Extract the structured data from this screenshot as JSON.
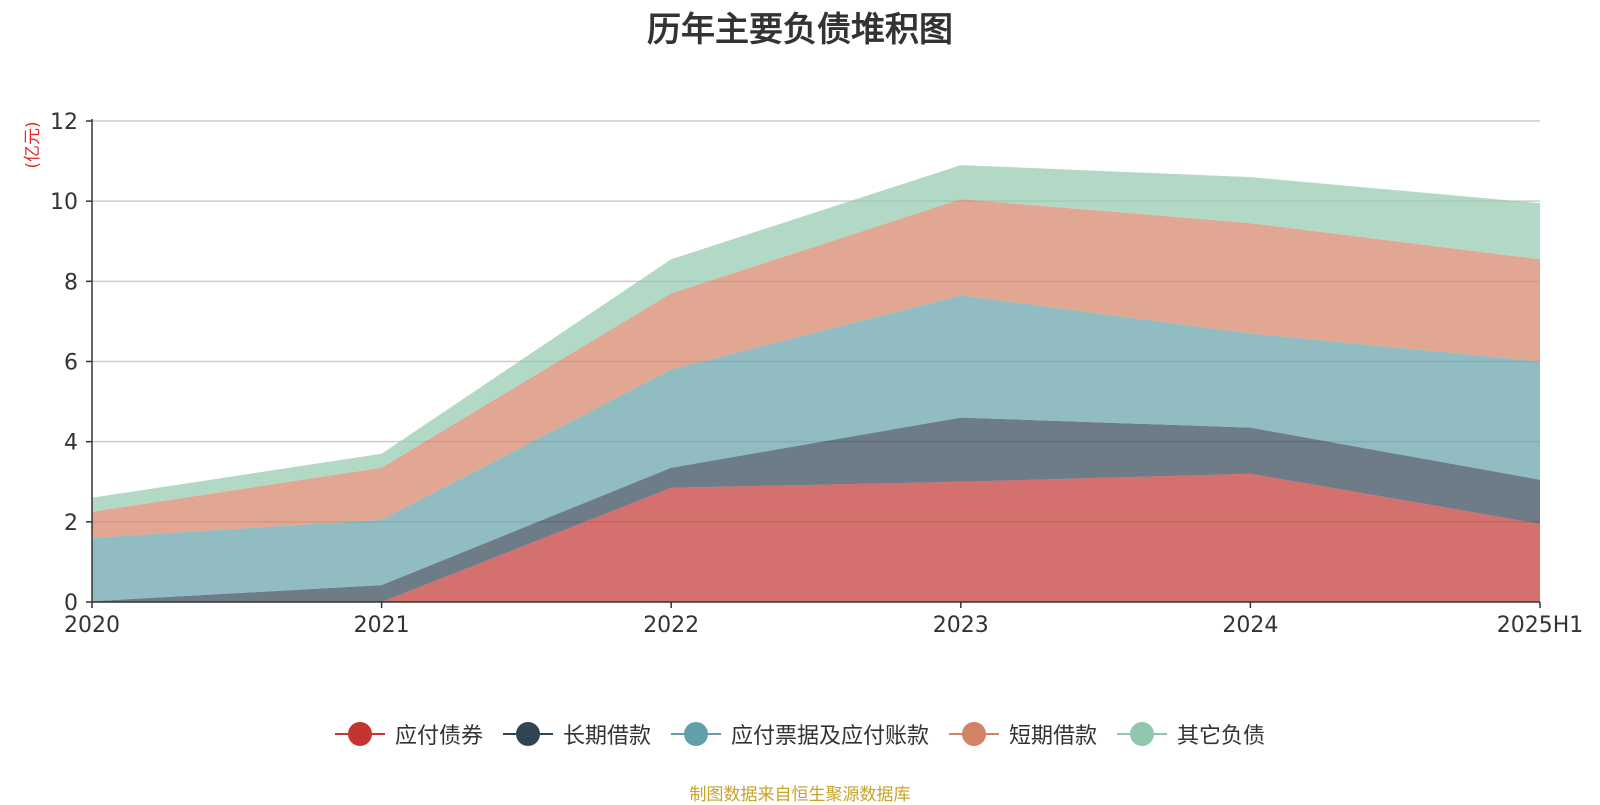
{
  "chart_data": {
    "type": "area",
    "stacked": true,
    "title": "历年主要负债堆积图",
    "y_unit": "(亿元)",
    "categories": [
      "2020",
      "2021",
      "2022",
      "2023",
      "2024",
      "2025H1"
    ],
    "ylim": [
      0,
      12
    ],
    "yticks": [
      0,
      2,
      4,
      6,
      8,
      10,
      12
    ],
    "grid": true,
    "legend_position": "bottom",
    "series": [
      {
        "name": "应付债券",
        "color": "#c23531",
        "values": [
          0.0,
          0.0,
          2.85,
          3.0,
          3.2,
          1.95
        ]
      },
      {
        "name": "长期借款",
        "color": "#2f4554",
        "values": [
          0.02,
          0.42,
          0.5,
          1.6,
          1.15,
          1.1
        ]
      },
      {
        "name": "应付票据及应付账款",
        "color": "#61a0a8",
        "values": [
          1.58,
          1.63,
          2.45,
          3.05,
          2.35,
          2.95
        ]
      },
      {
        "name": "短期借款",
        "color": "#d48265",
        "values": [
          0.65,
          1.3,
          1.9,
          2.4,
          2.75,
          2.55
        ]
      },
      {
        "name": "其它负债",
        "color": "#91c7ae",
        "values": [
          0.35,
          0.35,
          0.85,
          0.85,
          1.15,
          1.4
        ]
      }
    ]
  },
  "source_note": "制图数据来自恒生聚源数据库"
}
